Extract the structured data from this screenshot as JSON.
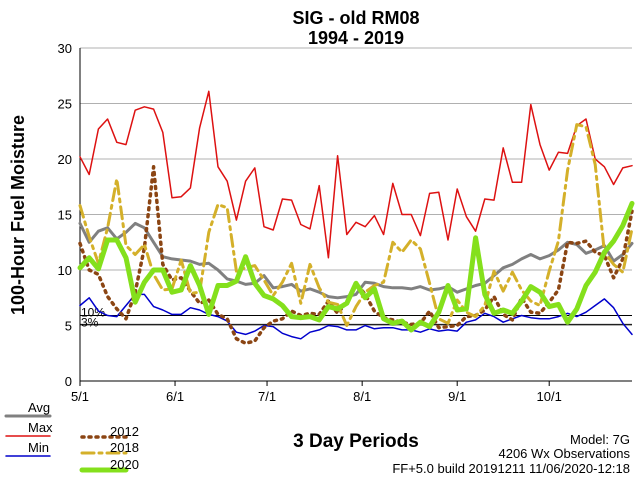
{
  "chart_data": {
    "type": "line",
    "title": "SIG - old RM08",
    "subtitle": "1994 - 2019",
    "xlabel": "3 Day Periods",
    "ylabel": "100-Hour Fuel Moisture",
    "ylim": [
      0,
      30
    ],
    "yticks": [
      "0",
      "5",
      "10",
      "15",
      "20",
      "25",
      "30"
    ],
    "xticks": [
      {
        "label": "5/1",
        "period": 0
      },
      {
        "label": "6/1",
        "period": 10.33
      },
      {
        "label": "7/1",
        "period": 20.33
      },
      {
        "label": "8/1",
        "period": 30.67
      },
      {
        "label": "9/1",
        "period": 41
      },
      {
        "label": "10/1",
        "period": 51
      }
    ],
    "grid": true,
    "thresholds": [
      {
        "label": "10%",
        "value": 5.9
      },
      {
        "label": "3%",
        "value": 5.1
      }
    ],
    "x": [
      0,
      1,
      2,
      3,
      4,
      5,
      6,
      7,
      8,
      9,
      10,
      11,
      12,
      13,
      14,
      15,
      16,
      17,
      18,
      19,
      20,
      21,
      22,
      23,
      24,
      25,
      26,
      27,
      28,
      29,
      30,
      31,
      32,
      33,
      34,
      35,
      36,
      37,
      38,
      39,
      40,
      41,
      42,
      43,
      44,
      45,
      46,
      47,
      48,
      49,
      50,
      51,
      52,
      53,
      54,
      55,
      56,
      57,
      58,
      59,
      60
    ],
    "series": [
      {
        "name": "Avg",
        "color": "#808080",
        "style": "solid",
        "width": 3,
        "values": [
          14.2,
          12.5,
          13.5,
          13.8,
          12.8,
          13.4,
          14.2,
          13.8,
          12.5,
          11.2,
          11.0,
          10.9,
          10.8,
          10.5,
          10.6,
          10.0,
          9.2,
          9.0,
          8.7,
          8.8,
          9.5,
          8.4,
          8.5,
          8.7,
          8.1,
          8.3,
          8.0,
          7.6,
          7.5,
          7.6,
          7.8,
          8.9,
          8.8,
          8.5,
          8.4,
          8.4,
          8.3,
          8.5,
          8.2,
          8.3,
          8.5,
          8.0,
          8.3,
          8.6,
          8.8,
          9.5,
          10.2,
          10.5,
          11.0,
          11.4,
          11.0,
          11.3,
          11.8,
          12.5,
          12.3,
          11.5,
          11.8,
          12.2,
          10.8,
          11.4,
          12.4
        ]
      },
      {
        "name": "Max",
        "color": "#dd1111",
        "style": "solid",
        "width": 1.5,
        "values": [
          20.2,
          18.6,
          22.7,
          23.6,
          21.5,
          21.3,
          24.4,
          24.7,
          24.5,
          22.4,
          16.5,
          16.6,
          17.4,
          22.8,
          26.1,
          19.3,
          18.0,
          14.5,
          18.0,
          19.2,
          13.9,
          13.6,
          16.4,
          16.3,
          14.1,
          13.7,
          17.6,
          11.1,
          20.3,
          13.2,
          14.3,
          13.9,
          14.9,
          13.2,
          17.8,
          15.0,
          15.0,
          13.1,
          16.9,
          17.0,
          12.7,
          17.3,
          14.8,
          13.5,
          16.4,
          16.3,
          21.0,
          17.9,
          17.9,
          24.9,
          21.3,
          19.0,
          20.6,
          20.5,
          23.0,
          23.6,
          20.0,
          19.3,
          17.7,
          19.2,
          19.4
        ]
      },
      {
        "name": "Min",
        "color": "#0000cc",
        "style": "solid",
        "width": 1.5,
        "values": [
          6.8,
          7.5,
          6.3,
          5.9,
          5.8,
          6.8,
          7.8,
          7.8,
          6.7,
          6.4,
          6.0,
          6.0,
          6.6,
          6.4,
          6.0,
          5.8,
          5.4,
          4.4,
          4.2,
          4.5,
          5.0,
          4.9,
          4.3,
          4.0,
          3.8,
          4.4,
          4.6,
          5.0,
          4.9,
          4.6,
          4.6,
          5.0,
          4.7,
          4.8,
          4.8,
          4.6,
          4.6,
          4.4,
          4.7,
          4.5,
          4.6,
          4.5,
          5.3,
          5.5,
          6.1,
          5.8,
          5.3,
          5.6,
          5.9,
          5.7,
          5.6,
          5.6,
          5.8,
          6.1,
          5.8,
          6.2,
          6.8,
          7.4,
          6.6,
          5.2,
          4.2
        ]
      },
      {
        "name": "2012",
        "color": "#8b4513",
        "style": "dot",
        "width": 3.5,
        "values": [
          12.4,
          10.0,
          9.6,
          7.6,
          6.5,
          5.6,
          8.0,
          12.0,
          19.3,
          10.5,
          9.1,
          9.3,
          8.1,
          7.0,
          7.3,
          6.0,
          5.6,
          3.8,
          3.4,
          3.6,
          4.8,
          5.4,
          5.6,
          6.3,
          5.9,
          6.1,
          6.0,
          7.2,
          6.1,
          7.1,
          8.8,
          7.8,
          6.3,
          5.7,
          5.5,
          5.3,
          5.1,
          5.2,
          6.3,
          4.8,
          4.9,
          5.0,
          5.8,
          5.9,
          6.4,
          7.6,
          6.0,
          5.5,
          7.5,
          6.2,
          6.1,
          7.1,
          8.2,
          12.5,
          12.4,
          12.6,
          11.6,
          11.3,
          9.3,
          11.0,
          15.3
        ]
      },
      {
        "name": "2018",
        "color": "#d4b02a",
        "style": "dashdot",
        "width": 3,
        "values": [
          15.8,
          13.0,
          10.6,
          13.8,
          18.2,
          12.2,
          11.4,
          12.3,
          9.6,
          8.2,
          8.3,
          10.9,
          7.9,
          8.0,
          13.4,
          15.9,
          15.6,
          9.9,
          10.2,
          10.4,
          9.1,
          7.7,
          8.9,
          10.6,
          7.0,
          10.5,
          8.4,
          7.1,
          6.9,
          5.0,
          6.7,
          8.0,
          8.6,
          8.9,
          12.5,
          11.6,
          12.7,
          11.9,
          8.8,
          5.6,
          5.2,
          7.3,
          6.2,
          5.8,
          6.8,
          9.9,
          8.1,
          9.8,
          8.2,
          7.2,
          6.8,
          9.9,
          12.6,
          19.0,
          23.1,
          22.9,
          19.5,
          11.6,
          10.5,
          9.8,
          13.7
        ]
      },
      {
        "name": "2020",
        "color": "#84e01c",
        "style": "solid",
        "width": 5,
        "values": [
          10.2,
          11.1,
          10.1,
          12.7,
          12.7,
          11.1,
          7.1,
          8.9,
          10.0,
          10.0,
          8.0,
          8.2,
          10.4,
          8.6,
          6.0,
          8.6,
          8.6,
          9.0,
          11.2,
          8.8,
          7.7,
          7.4,
          6.8,
          5.8,
          5.7,
          5.8,
          5.5,
          6.7,
          6.5,
          7.0,
          8.8,
          7.5,
          8.3,
          5.6,
          5.2,
          5.4,
          4.6,
          5.3,
          4.9,
          6.2,
          8.6,
          6.4,
          6.5,
          12.9,
          7.8,
          6.1,
          6.4,
          6.1,
          7.2,
          8.5,
          8.0,
          6.7,
          6.9,
          5.3,
          6.5,
          8.6,
          9.8,
          11.6,
          12.6,
          14.0,
          16.0
        ]
      }
    ]
  },
  "footer": {
    "model": "Model: 7G",
    "observations": "4206 Wx Observations",
    "build": "FF+5.0 build 20191211 11/06/2020-12:18"
  }
}
